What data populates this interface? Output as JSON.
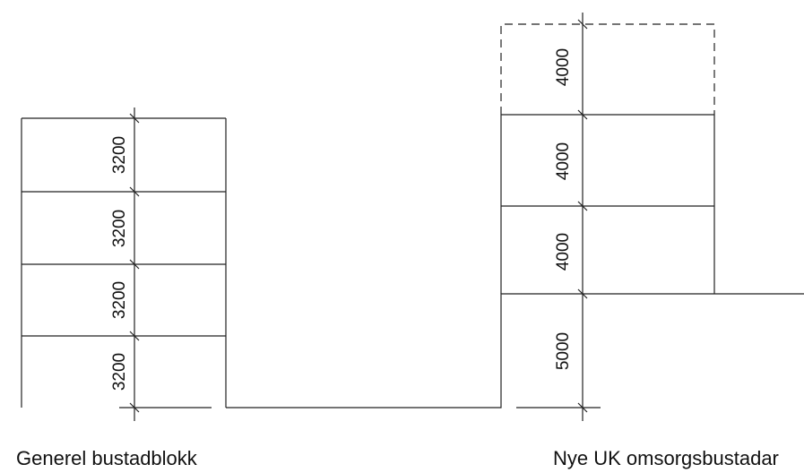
{
  "left_building": {
    "caption": "Generel bustadblokk",
    "floor_heights": [
      "3200",
      "3200",
      "3200",
      "3200"
    ]
  },
  "right_building": {
    "caption": "Nye UK omsorgsbustadar",
    "floor_heights": [
      "4000",
      "4000",
      "4000",
      "5000"
    ]
  }
}
